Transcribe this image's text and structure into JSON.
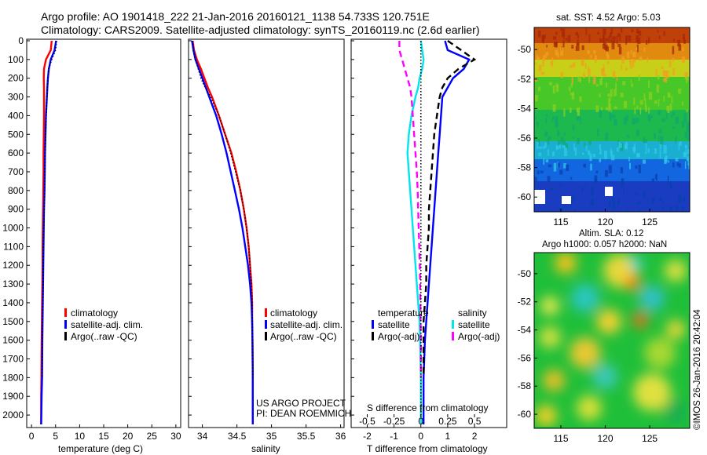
{
  "header": {
    "line1": "Argo profile: AO 1901418_222 21-Jan-2016 20160121_1138 54.733S 120.751E",
    "line2": "Climatology: CARS2009. Satellite-adjusted climatology: synTS_20160119.nc (2.6d earlier)"
  },
  "colors": {
    "climatology": "#ff0000",
    "satellite": "#0000ff",
    "argo": "#000000",
    "sal_satellite": "#00e5ee",
    "sal_argo": "#ff00ff"
  },
  "chart_data": [
    {
      "type": "line",
      "id": "temperature",
      "xlabel": "temperature (deg C)",
      "ylabel": "",
      "xlim": [
        -1,
        31
      ],
      "ylim": [
        2050,
        0
      ],
      "xticks": [
        0,
        5,
        10,
        15,
        20,
        25,
        30
      ],
      "yticks": [
        0,
        100,
        200,
        300,
        400,
        500,
        600,
        700,
        800,
        900,
        1000,
        1100,
        1200,
        1300,
        1400,
        1500,
        1600,
        1700,
        1800,
        1900,
        2000
      ],
      "legend": [
        "climatology",
        "satellite-adj. clim.",
        "Argo(..raw -QC)"
      ],
      "series": [
        {
          "name": "climatology",
          "color": "#ff0000",
          "style": "solid",
          "x": [
            4.2,
            4.0,
            3.0,
            2.6,
            2.55,
            2.6,
            2.6,
            2.6,
            2.55,
            2.5,
            2.5,
            2.45,
            2.4,
            2.35,
            2.3,
            2.3,
            2.25,
            2.2,
            2.15,
            2.1,
            2.05,
            2.0,
            2.0
          ],
          "y": [
            0,
            50,
            100,
            150,
            200,
            250,
            300,
            400,
            500,
            600,
            700,
            800,
            900,
            1000,
            1100,
            1200,
            1300,
            1400,
            1500,
            1600,
            1800,
            1900,
            2050
          ]
        },
        {
          "name": "satellite-adj. clim.",
          "color": "#0000ff",
          "style": "solid",
          "x": [
            5.1,
            4.8,
            4.0,
            3.6,
            3.4,
            3.3,
            3.2,
            3.0,
            2.9,
            2.8,
            2.75,
            2.7,
            2.6,
            2.55,
            2.5,
            2.45,
            2.4,
            2.35,
            2.3,
            2.25,
            2.2,
            2.1,
            2.0
          ],
          "y": [
            0,
            50,
            100,
            150,
            200,
            250,
            300,
            400,
            500,
            600,
            700,
            800,
            900,
            1000,
            1100,
            1200,
            1300,
            1400,
            1500,
            1600,
            1800,
            1900,
            2050
          ]
        },
        {
          "name": "Argo(..raw -QC)",
          "color": "#000000",
          "style": "dotted",
          "x": [
            5.2,
            5.0,
            4.2,
            3.6,
            3.4,
            3.3,
            3.2,
            3.05,
            2.95,
            2.85,
            2.8,
            2.7,
            2.65,
            2.55,
            2.5,
            2.45,
            2.4,
            2.35,
            2.3,
            2.25,
            2.2
          ],
          "y": [
            0,
            50,
            100,
            150,
            200,
            250,
            300,
            400,
            500,
            600,
            700,
            800,
            900,
            1000,
            1100,
            1200,
            1300,
            1400,
            1500,
            1600,
            1800
          ]
        }
      ]
    },
    {
      "type": "line",
      "id": "salinity",
      "xlabel": "salinity",
      "ylabel": "",
      "xlim": [
        33.8,
        36.05
      ],
      "ylim": [
        2050,
        0
      ],
      "xticks": [
        34,
        34.5,
        35,
        35.5,
        36
      ],
      "xticklabels": [
        "34",
        "34.5",
        "35",
        "35.5",
        "36"
      ],
      "legend": [
        "climatology",
        "satellite-adj. clim.",
        "Argo(..raw -QC)"
      ],
      "credit1": "US ARGO PROJECT",
      "credit2": "PI: DEAN ROEMMICH",
      "series": [
        {
          "name": "climatology",
          "color": "#ff0000",
          "style": "solid",
          "x": [
            33.86,
            33.88,
            33.92,
            33.98,
            34.03,
            34.08,
            34.14,
            34.24,
            34.33,
            34.42,
            34.49,
            34.55,
            34.6,
            34.64,
            34.67,
            34.69,
            34.71,
            34.72,
            34.72,
            34.725,
            34.73,
            34.73,
            34.73
          ],
          "y": [
            0,
            50,
            100,
            150,
            200,
            250,
            300,
            400,
            500,
            600,
            700,
            800,
            900,
            1000,
            1100,
            1200,
            1300,
            1400,
            1500,
            1600,
            1800,
            1900,
            2050
          ]
        },
        {
          "name": "satellite-adj. clim.",
          "color": "#0000ff",
          "style": "solid",
          "x": [
            33.85,
            33.87,
            33.9,
            33.95,
            34.0,
            34.05,
            34.1,
            34.2,
            34.28,
            34.35,
            34.41,
            34.47,
            34.53,
            34.58,
            34.62,
            34.66,
            34.69,
            34.71,
            34.72,
            34.725,
            34.73,
            34.73,
            34.73
          ],
          "y": [
            0,
            50,
            100,
            150,
            200,
            250,
            300,
            400,
            500,
            600,
            700,
            800,
            900,
            1000,
            1100,
            1200,
            1300,
            1400,
            1500,
            1600,
            1800,
            1900,
            2050
          ]
        },
        {
          "name": "Argo(..raw -QC)",
          "color": "#000000",
          "style": "dotted",
          "x": [
            33.86,
            33.87,
            33.9,
            33.94,
            33.98,
            34.04,
            34.12,
            34.24,
            34.33,
            34.41,
            34.48,
            34.55,
            34.6,
            34.64,
            34.67,
            34.69,
            34.71,
            34.72,
            34.72,
            34.725,
            34.73
          ],
          "y": [
            0,
            50,
            100,
            150,
            200,
            250,
            300,
            400,
            500,
            600,
            700,
            800,
            900,
            1000,
            1100,
            1200,
            1300,
            1400,
            1500,
            1600,
            1800
          ]
        }
      ]
    },
    {
      "type": "line",
      "id": "difference",
      "xlabel": "T difference from climatology",
      "xlabel_top": "S difference from climatology",
      "xlim": [
        -2.6,
        3.2
      ],
      "ylim": [
        2050,
        0
      ],
      "xticks": [
        -2,
        -1,
        0,
        1,
        2
      ],
      "top_ticks": [
        -0.5,
        -0.25,
        0,
        0.25,
        0.5
      ],
      "top_ticklabels": [
        "-0.5",
        "-0.25",
        "0",
        "0.25",
        "0.5"
      ],
      "legend_temperature_title": "temperature",
      "legend_salinity_title": "salinity",
      "legend": [
        "satellite",
        "Argo(-adj)",
        "satellite",
        "Argo(-adj)"
      ],
      "series": [
        {
          "name": "T satellite",
          "color": "#0000ff",
          "style": "solid",
          "x": [
            0.9,
            1.0,
            1.8,
            1.6,
            1.2,
            1.0,
            0.8,
            0.75,
            0.7,
            0.65,
            0.6,
            0.55,
            0.5,
            0.45,
            0.4,
            0.35,
            0.3,
            0.25,
            0.2,
            0.15,
            0.1,
            0.1,
            0.1
          ],
          "y": [
            0,
            50,
            100,
            150,
            200,
            250,
            300,
            400,
            500,
            600,
            700,
            800,
            900,
            1000,
            1100,
            1200,
            1300,
            1400,
            1500,
            1600,
            1800,
            1900,
            2050
          ]
        },
        {
          "name": "T Argo(-adj)",
          "color": "#000000",
          "style": "dashed",
          "x": [
            1.0,
            1.5,
            2.0,
            1.4,
            1.0,
            0.8,
            0.7,
            0.6,
            0.5,
            0.45,
            0.4,
            0.35,
            0.3,
            0.3,
            0.25,
            0.2,
            0.2,
            0.15,
            0.1,
            0.1,
            0.1
          ],
          "y": [
            0,
            50,
            100,
            150,
            200,
            250,
            300,
            400,
            500,
            600,
            700,
            800,
            900,
            1000,
            1100,
            1200,
            1300,
            1400,
            1500,
            1600,
            1800
          ]
        },
        {
          "name": "S satellite",
          "color": "#00e5ee",
          "style": "solid",
          "x": [
            0.0,
            0.05,
            0.1,
            0.05,
            -0.05,
            -0.1,
            -0.2,
            -0.35,
            -0.45,
            -0.5,
            -0.45,
            -0.4,
            -0.35,
            -0.3,
            -0.25,
            -0.2,
            -0.15,
            -0.1,
            -0.05,
            -0.03,
            0.0,
            0.0,
            0.0
          ],
          "y": [
            0,
            50,
            100,
            150,
            200,
            250,
            300,
            400,
            500,
            600,
            700,
            800,
            900,
            1000,
            1100,
            1200,
            1300,
            1400,
            1500,
            1600,
            1800,
            1900,
            2050
          ]
        },
        {
          "name": "S Argo(-adj)",
          "color": "#ff00ff",
          "style": "dashed",
          "x": [
            -0.8,
            -0.8,
            -0.7,
            -0.6,
            -0.5,
            -0.4,
            -0.35,
            -0.3,
            -0.25,
            -0.2,
            -0.15,
            -0.12,
            -0.1,
            -0.08,
            -0.06,
            -0.04,
            -0.03,
            -0.02,
            -0.01,
            0.0,
            0.0
          ],
          "y": [
            0,
            50,
            100,
            150,
            200,
            250,
            300,
            400,
            500,
            600,
            700,
            800,
            900,
            1000,
            1100,
            1200,
            1300,
            1400,
            1500,
            1600,
            1800
          ]
        },
        {
          "name": "zero",
          "color": "#000000",
          "style": "dotted",
          "x": [
            0.0,
            0.0,
            0.0,
            0.0,
            0.0,
            0.0,
            0.0,
            0.0,
            0.0,
            0.0,
            0.0,
            0.0
          ],
          "y": [
            0,
            200,
            400,
            600,
            800,
            1000,
            1200,
            1400,
            1600,
            1800,
            1900,
            2000
          ]
        }
      ]
    },
    {
      "type": "heatmap",
      "id": "sst_map",
      "title": "sat. SST: 4.52 Argo: 5.03",
      "xlim": [
        112,
        129.5
      ],
      "ylim": [
        -61,
        -48.5
      ],
      "xticks": [
        115,
        120,
        125
      ],
      "yticks": [
        -50,
        -52,
        -54,
        -56,
        -58,
        -60
      ],
      "yticklabels": [
        "-50",
        "-52",
        "-54",
        "-56",
        "-58",
        "-60"
      ]
    },
    {
      "type": "heatmap",
      "id": "sla_map",
      "title1": "Altim. SLA: 0.12",
      "title2": "Argo h1000: 0.057 h2000: NaN",
      "xlim": [
        112,
        129.5
      ],
      "ylim": [
        -61,
        -48.5
      ],
      "xticks": [
        115,
        120,
        125
      ],
      "yticks": [
        -50,
        -52,
        -54,
        -56,
        -58,
        -60
      ],
      "yticklabels": [
        "-50",
        "-52",
        "-54",
        "-56",
        "-58",
        "-60"
      ],
      "credit": "©IMOS 26-Jan-2016 20:42:04"
    }
  ]
}
